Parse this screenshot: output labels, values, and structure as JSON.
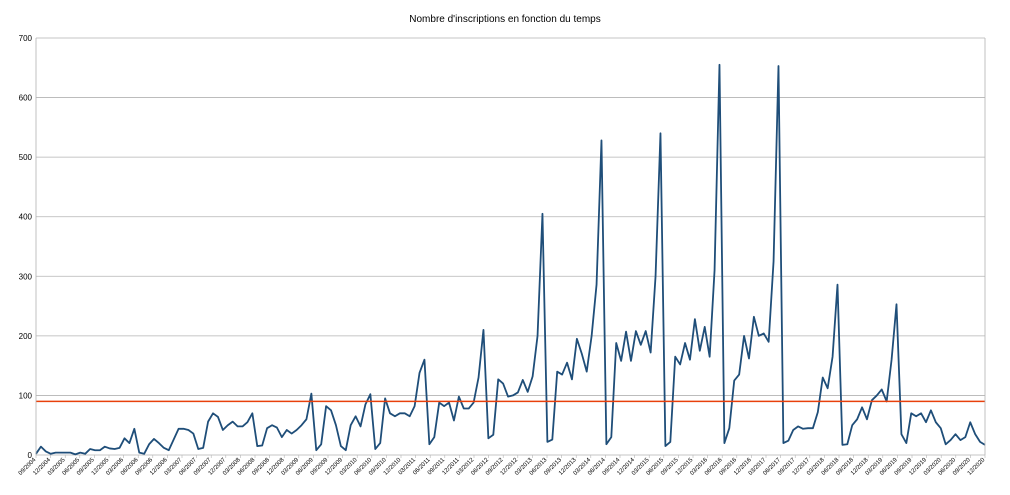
{
  "chart_data": {
    "type": "line",
    "title": "Nombre d'inscriptions en fonction du temps",
    "xlabel": "",
    "ylabel": "",
    "ylim": [
      0,
      700
    ],
    "yticks": [
      0,
      100,
      200,
      300,
      400,
      500,
      600,
      700
    ],
    "grid": true,
    "legend": "none",
    "colors": {
      "series": "#1f4e79",
      "reference_line": "#e8400c",
      "grid": "#b3b3b3"
    },
    "reference_line": {
      "y": 90
    },
    "x_tick_labels": [
      "09/2004",
      "12/2004",
      "03/2005",
      "06/2005",
      "09/2005",
      "12/2005",
      "03/2006",
      "06/2006",
      "09/2006",
      "12/2006",
      "03/2007",
      "06/2007",
      "09/2007",
      "12/2007",
      "03/2008",
      "06/2008",
      "09/2008",
      "12/2008",
      "03/2009",
      "06/2009",
      "09/2009",
      "12/2009",
      "03/2010",
      "06/2010",
      "09/2010",
      "12/2010",
      "03/2011",
      "06/2011",
      "09/2011",
      "12/2011",
      "03/2012",
      "06/2012",
      "09/2012",
      "12/2012",
      "03/2013",
      "06/2013",
      "09/2013",
      "12/2013",
      "03/2014",
      "06/2014",
      "09/2014",
      "12/2014",
      "03/2015",
      "06/2015",
      "09/2015",
      "12/2015",
      "03/2016",
      "06/2016",
      "09/2016",
      "12/2016",
      "03/2017",
      "06/2017",
      "09/2017",
      "12/2017",
      "03/2018",
      "06/2018",
      "09/2018",
      "12/2018",
      "03/2019",
      "06/2019",
      "09/2019",
      "12/2019",
      "03/2020",
      "06/2020",
      "09/2020",
      "12/2020"
    ],
    "series": [
      {
        "name": "",
        "values": [
          2,
          14,
          6,
          2,
          4,
          4,
          4,
          4,
          1,
          4,
          2,
          10,
          8,
          8,
          14,
          11,
          10,
          12,
          28,
          20,
          44,
          4,
          2,
          18,
          27,
          20,
          12,
          8,
          26,
          44,
          44,
          42,
          36,
          10,
          12,
          56,
          70,
          64,
          42,
          50,
          56,
          48,
          48,
          55,
          70,
          15,
          16,
          45,
          50,
          46,
          30,
          42,
          36,
          42,
          50,
          60,
          103,
          8,
          18,
          82,
          75,
          50,
          15,
          8,
          50,
          65,
          48,
          85,
          102,
          10,
          20,
          95,
          70,
          65,
          70,
          70,
          65,
          82,
          138,
          160,
          18,
          30,
          88,
          82,
          88,
          58,
          98,
          78,
          78,
          88,
          130,
          210,
          28,
          34,
          127,
          120,
          98,
          100,
          105,
          126,
          106,
          132,
          200,
          405,
          22,
          26,
          140,
          135,
          155,
          127,
          195,
          170,
          140,
          200,
          286,
          528,
          18,
          30,
          188,
          158,
          207,
          158,
          208,
          185,
          208,
          172,
          300,
          540,
          15,
          22,
          165,
          152,
          188,
          160,
          228,
          175,
          215,
          165,
          310,
          655,
          20,
          45,
          125,
          135,
          200,
          162,
          232,
          200,
          204,
          190,
          325,
          653,
          20,
          24,
          42,
          48,
          44,
          45,
          45,
          72,
          130,
          112,
          165,
          286,
          17,
          18,
          50,
          60,
          80,
          60,
          92,
          100,
          110,
          90,
          160,
          253,
          35,
          20,
          70,
          65,
          70,
          55,
          75,
          55,
          45,
          18,
          25,
          35,
          25,
          30,
          55,
          35,
          22,
          17
        ]
      }
    ]
  }
}
